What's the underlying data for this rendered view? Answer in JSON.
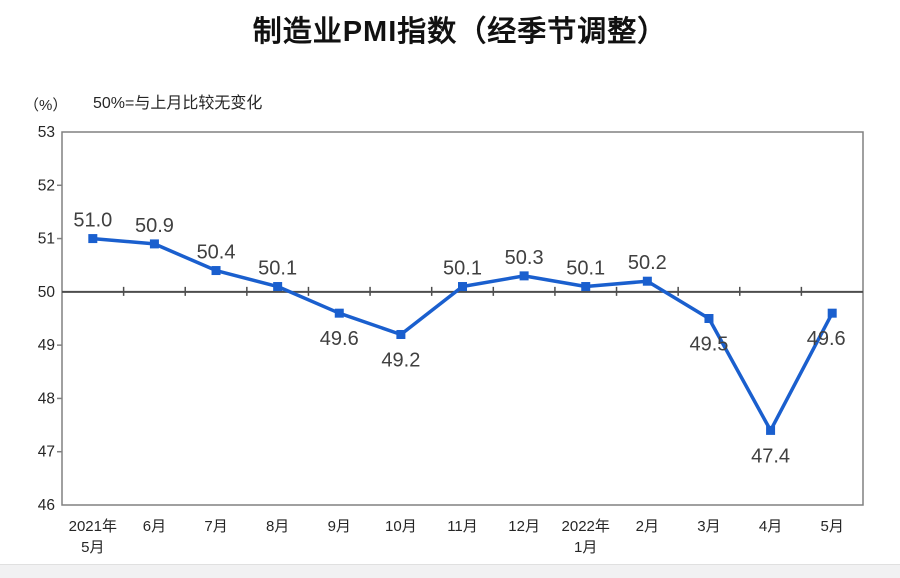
{
  "chart_data": {
    "type": "line",
    "title": "制造业PMI指数（经季节调整）",
    "unit_label": "（%）",
    "annotation": "50%=与上月比较无变化",
    "categories": [
      [
        "2021年",
        "5月"
      ],
      [
        "6月"
      ],
      [
        "7月"
      ],
      [
        "8月"
      ],
      [
        "9月"
      ],
      [
        "10月"
      ],
      [
        "11月"
      ],
      [
        "12月"
      ],
      [
        "2022年",
        "1月"
      ],
      [
        "2月"
      ],
      [
        "3月"
      ],
      [
        "4月"
      ],
      [
        "5月"
      ]
    ],
    "values": [
      51.0,
      50.9,
      50.4,
      50.1,
      49.6,
      49.2,
      50.1,
      50.3,
      50.1,
      50.2,
      49.5,
      47.4,
      49.6
    ],
    "value_labels": [
      "51.0",
      "50.9",
      "50.4",
      "50.1",
      "49.6",
      "49.2",
      "50.1",
      "50.3",
      "50.1",
      "50.2",
      "49.5",
      "47.4",
      "49.6"
    ],
    "ylim": [
      46,
      53
    ],
    "yticks": [
      46,
      47,
      48,
      49,
      50,
      51,
      52,
      53
    ],
    "reference_line": 50,
    "grid": false,
    "legend": "none",
    "colors": {
      "line": "#1A5FCE",
      "marker": "#1A5FCE",
      "reference_line": "#4D4D4D",
      "frame": "#808080",
      "data_label": "#404040",
      "axis_label": "#262626"
    }
  }
}
